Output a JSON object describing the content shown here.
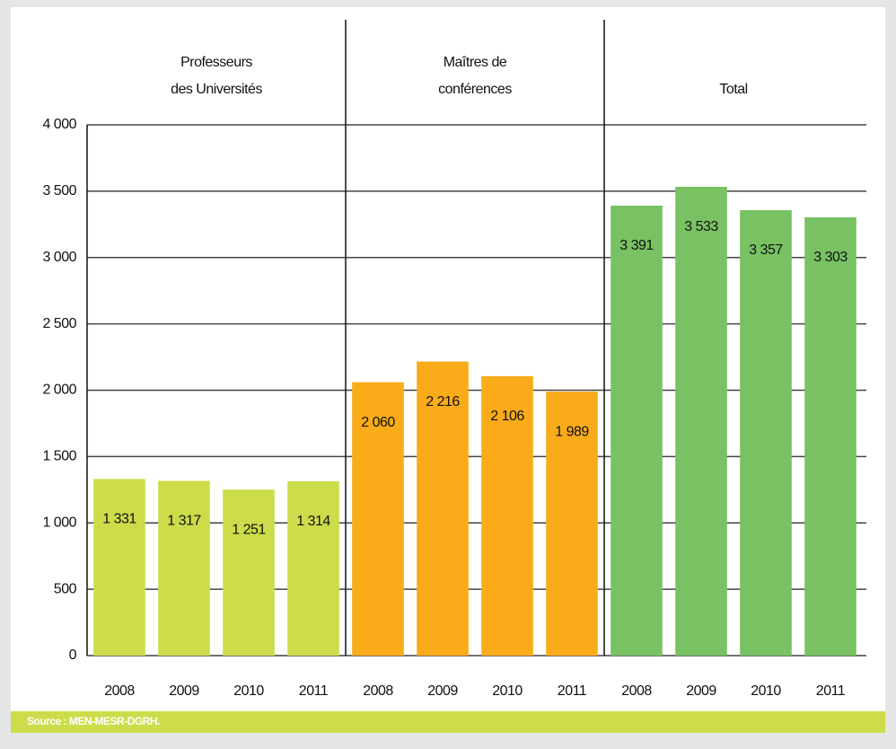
{
  "chart_data": {
    "type": "bar",
    "ylim": [
      0,
      4000
    ],
    "yticks": [
      0,
      500,
      {
        "value": 1000,
        "label": "1 000"
      },
      {
        "value": 1500,
        "label": "1 500"
      },
      {
        "value": 2000,
        "label": "2 000"
      },
      {
        "value": 2500,
        "label": "2 500"
      },
      {
        "value": 3000,
        "label": "3 000"
      },
      {
        "value": 3500,
        "label": "3 500"
      },
      {
        "value": 4000,
        "label": "4 000"
      }
    ],
    "grid": true,
    "panels": [
      {
        "title": [
          "Professeurs",
          "des Universités"
        ],
        "categories": [
          "2008",
          "2009",
          "2010",
          "2011"
        ],
        "values": [
          1331,
          1317,
          1251,
          1314
        ],
        "value_labels": [
          "1 331",
          "1 317",
          "1 251",
          "1 314"
        ],
        "color": "#cddc4a"
      },
      {
        "title": [
          "Maîtres de",
          "conférences"
        ],
        "categories": [
          "2008",
          "2009",
          "2010",
          "2011"
        ],
        "values": [
          2060,
          2216,
          2106,
          1989
        ],
        "value_labels": [
          "2 060",
          "2 216",
          "2 106",
          "1 989"
        ],
        "color": "#f9ab19"
      },
      {
        "title": [
          "Total"
        ],
        "categories": [
          "2008",
          "2009",
          "2010",
          "2011"
        ],
        "values": [
          3391,
          3533,
          3357,
          3303
        ],
        "value_labels": [
          "3 391",
          "3 533",
          "3 357",
          "3 303"
        ],
        "color": "#78c264"
      }
    ],
    "source": "Source : MEN-MESR-DGRH."
  }
}
